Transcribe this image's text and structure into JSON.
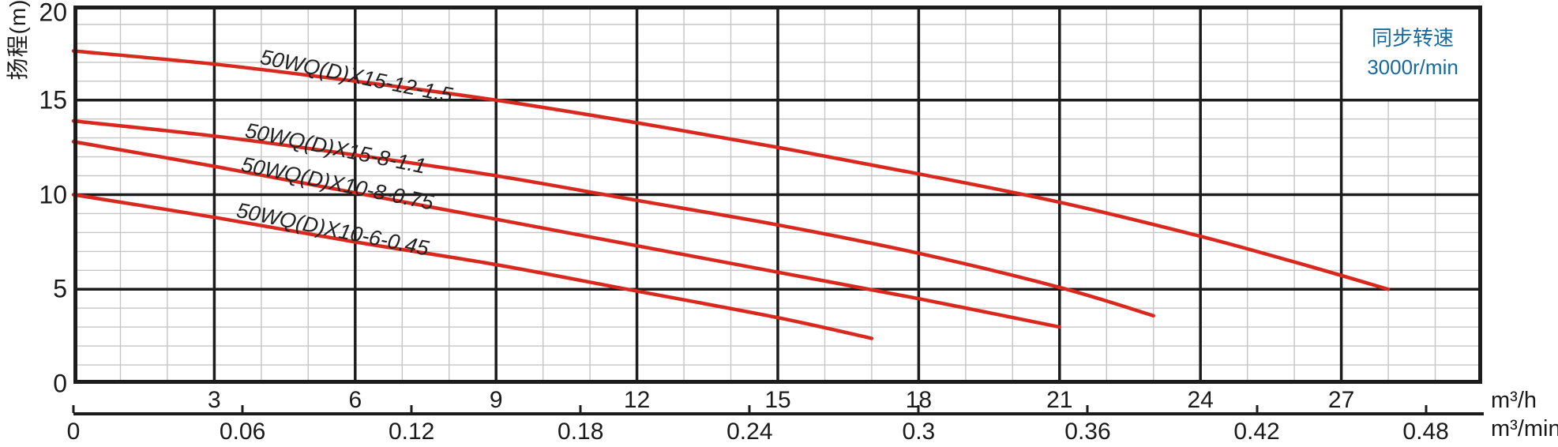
{
  "y_axis": {
    "label": "扬程(m)",
    "ticks": [
      20,
      15,
      10,
      5,
      0
    ]
  },
  "x_axis_primary": {
    "ticks": [
      3,
      6,
      9,
      12,
      15,
      18,
      21,
      24,
      27
    ],
    "unit": "m³/h"
  },
  "x_axis_secondary": {
    "ticks": [
      "0",
      "0.06",
      "0.12",
      "0.18",
      "0.24",
      "0.3",
      "0.36",
      "0.42",
      "0.48"
    ],
    "unit": "m³/min"
  },
  "annotation_box": {
    "line1": "同步转速",
    "line2": "3000r/min"
  },
  "colors": {
    "curve_red": "#d9281e",
    "annotation_blue": "#17699e",
    "grid_major": "#1c1c1c",
    "grid_minor": "#c5c5c5",
    "text": "#1a1a1a"
  },
  "chart_data": {
    "type": "line",
    "y_label": "扬程(m)",
    "x_unit_primary": "m³/h",
    "x_unit_secondary": "m³/min",
    "x_range": [
      0,
      30
    ],
    "y_range": [
      0,
      20
    ],
    "x_major_step": 3,
    "x_minor_step": 1,
    "y_major_step": 5,
    "y_minor_step": 1,
    "grid": "on",
    "annotation": "同步转速 3000r/min",
    "series": [
      {
        "name": "50WQ(D)X15-12-1.5",
        "points": [
          [
            0,
            17.6
          ],
          [
            3,
            16.9
          ],
          [
            6,
            16.0
          ],
          [
            9,
            15.0
          ],
          [
            12,
            13.8
          ],
          [
            15,
            12.5
          ],
          [
            18,
            11.1
          ],
          [
            21,
            9.6
          ],
          [
            24,
            7.8
          ],
          [
            26.2,
            6.3
          ],
          [
            28,
            5.0
          ]
        ]
      },
      {
        "name": "50WQ(D)X15-8-1.1",
        "points": [
          [
            0,
            13.9
          ],
          [
            3,
            13.1
          ],
          [
            6,
            12.1
          ],
          [
            9,
            11.0
          ],
          [
            12,
            9.7
          ],
          [
            15,
            8.4
          ],
          [
            18,
            6.9
          ],
          [
            21,
            5.1
          ],
          [
            23,
            3.6
          ]
        ]
      },
      {
        "name": "50WQ(D)X10-8-0.75",
        "points": [
          [
            0,
            12.8
          ],
          [
            3,
            11.5
          ],
          [
            6,
            10.1
          ],
          [
            9,
            8.7
          ],
          [
            12,
            7.3
          ],
          [
            15,
            5.9
          ],
          [
            18,
            4.5
          ],
          [
            21,
            3.0
          ]
        ]
      },
      {
        "name": "50WQ(D)X10-6-0.45",
        "points": [
          [
            0,
            10.0
          ],
          [
            3,
            8.8
          ],
          [
            6,
            7.5
          ],
          [
            9,
            6.3
          ],
          [
            12,
            4.9
          ],
          [
            15,
            3.5
          ],
          [
            17,
            2.4
          ]
        ]
      }
    ]
  }
}
